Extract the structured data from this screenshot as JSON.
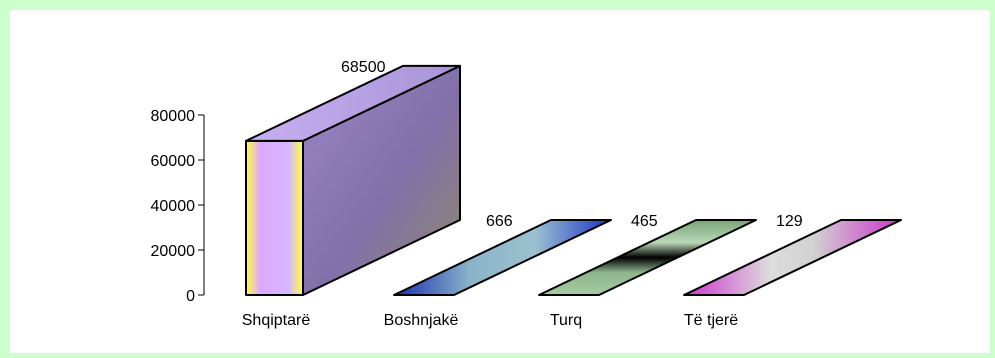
{
  "chart_data": {
    "type": "bar",
    "title": "",
    "xlabel": "",
    "ylabel": "",
    "categories": [
      "Shqiptarë",
      "Boshnjakë",
      "Turq",
      "Të tjerë"
    ],
    "values": [
      68500,
      666,
      465,
      129
    ],
    "value_labels": [
      "68500",
      "666",
      "465",
      "129"
    ],
    "ylim": [
      0,
      80000
    ],
    "y_ticks": [
      0,
      20000,
      40000,
      60000,
      80000
    ],
    "y_tick_labels": [
      "0",
      "20000",
      "40000",
      "60000",
      "80000"
    ],
    "grid": false,
    "legend": "none",
    "style": "3d-column",
    "colors": {
      "frame_background": "#ccffcc",
      "plot_background": "#ffffff",
      "bar_1_front": [
        "#ffff44",
        "#dda8ff",
        "#d6b8ff",
        "#ffff44"
      ],
      "bar_1_top": "#b9a2e6",
      "bar_1_side": "#8c78b8",
      "bar_2_top": [
        "#1a2db0",
        "#8ab4c8",
        "#9cc0cf",
        "#1a33c8"
      ],
      "bar_3_top": [
        "#7aa478",
        "#bad8b8",
        "#000000",
        "#a6cba4"
      ],
      "bar_4_top": [
        "#cc33cc",
        "#dddddd",
        "#d1d1d1",
        "#cc33cc"
      ]
    }
  }
}
